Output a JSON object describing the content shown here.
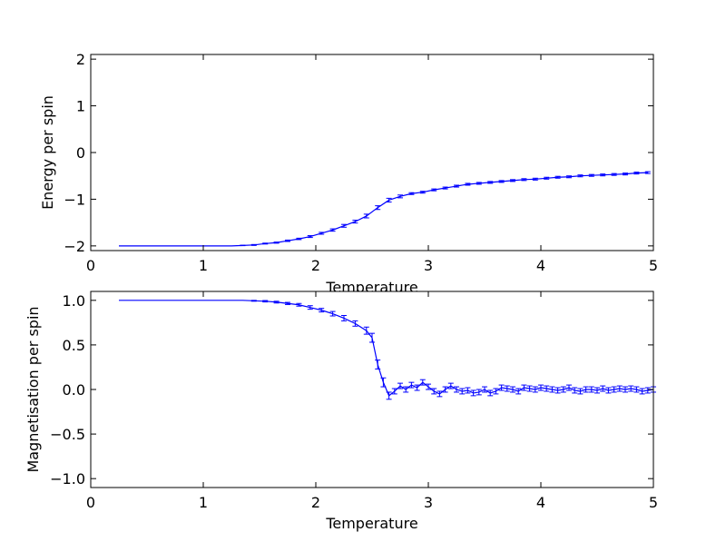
{
  "chart_data": [
    {
      "type": "line",
      "xlabel": "Temperature",
      "ylabel": "Energy per spin",
      "xlim": [
        0,
        5
      ],
      "ylim": [
        -2.1,
        2.1
      ],
      "xticks": [
        "0",
        "1",
        "2",
        "3",
        "4",
        "5"
      ],
      "yticks": [
        "2",
        "1",
        "0",
        "−1",
        "−2"
      ],
      "grid": false,
      "color": "#0000ff",
      "series": [
        {
          "x": [
            0.25,
            0.35,
            0.45,
            0.55,
            0.65,
            0.75,
            0.85,
            0.95,
            1.05,
            1.15,
            1.25,
            1.35,
            1.45,
            1.55,
            1.65,
            1.75,
            1.85,
            1.95,
            2.05,
            2.15,
            2.25,
            2.35,
            2.45,
            2.55,
            2.65,
            2.75,
            2.85,
            2.95,
            3.05,
            3.15,
            3.25,
            3.35,
            3.45,
            3.55,
            3.65,
            3.75,
            3.85,
            3.95,
            4.05,
            4.15,
            4.25,
            4.35,
            4.45,
            4.55,
            4.65,
            4.75,
            4.85,
            4.95
          ],
          "values": [
            -2.0,
            -2.0,
            -2.0,
            -2.0,
            -2.0,
            -2.0,
            -2.0,
            -2.0,
            -2.0,
            -2.0,
            -2.0,
            -1.99,
            -1.98,
            -1.95,
            -1.93,
            -1.89,
            -1.85,
            -1.8,
            -1.73,
            -1.66,
            -1.57,
            -1.48,
            -1.36,
            -1.18,
            -1.02,
            -0.94,
            -0.88,
            -0.85,
            -0.8,
            -0.76,
            -0.72,
            -0.68,
            -0.66,
            -0.64,
            -0.62,
            -0.6,
            -0.58,
            -0.57,
            -0.55,
            -0.53,
            -0.52,
            -0.5,
            -0.49,
            -0.48,
            -0.47,
            -0.46,
            -0.44,
            -0.43
          ],
          "errors": [
            0,
            0,
            0,
            0,
            0,
            0,
            0,
            0,
            0,
            0,
            0,
            0.005,
            0.01,
            0.01,
            0.012,
            0.015,
            0.015,
            0.02,
            0.02,
            0.025,
            0.03,
            0.03,
            0.04,
            0.04,
            0.04,
            0.03,
            0.02,
            0.02,
            0.02,
            0.02,
            0.02,
            0.02,
            0.02,
            0.02,
            0.02,
            0.02,
            0.02,
            0.02,
            0.02,
            0.02,
            0.02,
            0.02,
            0.02,
            0.02,
            0.02,
            0.02,
            0.02,
            0.02
          ]
        }
      ]
    },
    {
      "type": "line",
      "xlabel": "Temperature",
      "ylabel": "Magnetisation per spin",
      "xlim": [
        0,
        5
      ],
      "ylim": [
        -1.1,
        1.1
      ],
      "xticks": [
        "0",
        "1",
        "2",
        "3",
        "4",
        "5"
      ],
      "yticks": [
        "1.0",
        "0.5",
        "0.0",
        "−0.5",
        "−1.0"
      ],
      "grid": false,
      "color": "#0000ff",
      "series": [
        {
          "x": [
            0.25,
            0.35,
            0.45,
            0.55,
            0.65,
            0.75,
            0.85,
            0.95,
            1.05,
            1.15,
            1.25,
            1.35,
            1.45,
            1.55,
            1.65,
            1.75,
            1.85,
            1.95,
            2.05,
            2.15,
            2.25,
            2.35,
            2.45,
            2.5,
            2.55,
            2.6,
            2.65,
            2.7,
            2.75,
            2.8,
            2.85,
            2.9,
            2.95,
            3.0,
            3.05,
            3.1,
            3.15,
            3.2,
            3.25,
            3.3,
            3.35,
            3.4,
            3.45,
            3.5,
            3.55,
            3.6,
            3.65,
            3.7,
            3.75,
            3.8,
            3.85,
            3.9,
            3.95,
            4.0,
            4.05,
            4.1,
            4.15,
            4.2,
            4.25,
            4.3,
            4.35,
            4.4,
            4.45,
            4.5,
            4.55,
            4.6,
            4.65,
            4.7,
            4.75,
            4.8,
            4.85,
            4.9,
            4.95,
            5.0
          ],
          "values": [
            1.0,
            1.0,
            1.0,
            1.0,
            1.0,
            1.0,
            1.0,
            1.0,
            1.0,
            1.0,
            1.0,
            1.0,
            0.995,
            0.99,
            0.98,
            0.965,
            0.95,
            0.92,
            0.89,
            0.85,
            0.8,
            0.74,
            0.66,
            0.58,
            0.28,
            0.08,
            -0.07,
            -0.02,
            0.04,
            0.0,
            0.05,
            0.02,
            0.08,
            0.03,
            -0.02,
            -0.05,
            0.0,
            0.04,
            0.0,
            -0.02,
            -0.01,
            -0.04,
            -0.03,
            0.0,
            -0.04,
            -0.02,
            0.02,
            0.01,
            0.0,
            -0.02,
            0.02,
            0.01,
            0.0,
            0.02,
            0.01,
            0.0,
            -0.01,
            0.0,
            0.02,
            -0.01,
            -0.02,
            0.0,
            0.0,
            -0.01,
            0.01,
            -0.01,
            0.0,
            0.01,
            0.0,
            0.01,
            0.0,
            -0.02,
            -0.01,
            0.0
          ],
          "errors": [
            0,
            0,
            0,
            0,
            0,
            0,
            0,
            0,
            0,
            0,
            0,
            0,
            0.005,
            0.008,
            0.01,
            0.012,
            0.015,
            0.02,
            0.02,
            0.025,
            0.03,
            0.03,
            0.04,
            0.05,
            0.05,
            0.05,
            0.04,
            0.03,
            0.03,
            0.03,
            0.03,
            0.03,
            0.03,
            0.03,
            0.03,
            0.03,
            0.03,
            0.03,
            0.03,
            0.03,
            0.03,
            0.03,
            0.03,
            0.03,
            0.03,
            0.03,
            0.03,
            0.03,
            0.03,
            0.03,
            0.03,
            0.03,
            0.03,
            0.03,
            0.03,
            0.03,
            0.03,
            0.03,
            0.03,
            0.03,
            0.03,
            0.03,
            0.03,
            0.03,
            0.03,
            0.03,
            0.03,
            0.03,
            0.03,
            0.03,
            0.03,
            0.03,
            0.03,
            0.03
          ]
        }
      ]
    }
  ]
}
